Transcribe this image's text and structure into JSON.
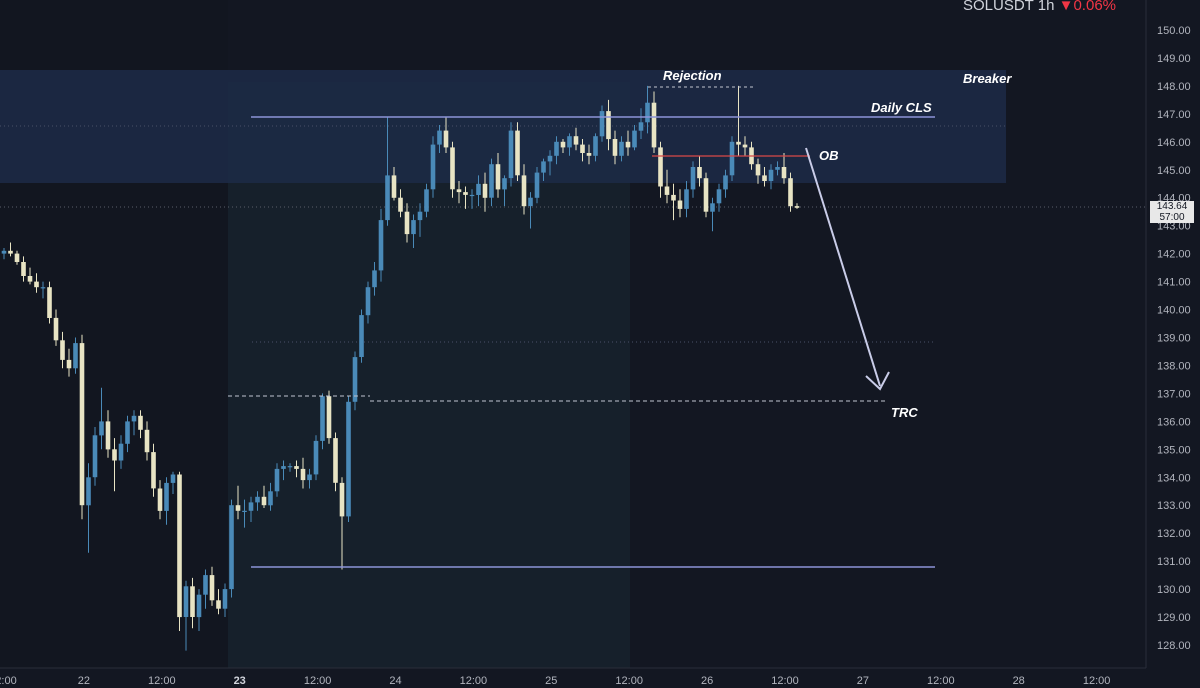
{
  "header": {
    "symbol": "SOLUSDT",
    "interval": "1h",
    "change_arrow": "▼",
    "change": "0.06%"
  },
  "price_tag": {
    "price": "143.64",
    "countdown": "57:00"
  },
  "colors": {
    "background": "#131722",
    "candle": "#e8e4c4",
    "candle_alt": "#4a8ab8",
    "zone": "#1c2a45",
    "level_line": "#8c94d8",
    "ob_line": "#d94848",
    "arrow": "#c9cce8"
  },
  "chart_data": {
    "type": "candlestick",
    "symbol": "SOLUSDT",
    "timeframe": "1h",
    "y_axis": {
      "range": [
        127.5,
        150.3
      ],
      "ticks": [
        "150.00",
        "149.00",
        "148.00",
        "147.00",
        "146.00",
        "145.00",
        "144.00",
        "143.00",
        "142.00",
        "141.00",
        "140.00",
        "139.00",
        "138.00",
        "137.00",
        "136.00",
        "135.00",
        "134.00",
        "133.00",
        "132.00",
        "131.00",
        "130.00",
        "129.00",
        "128.00"
      ]
    },
    "x_axis": {
      "ticks": [
        "2:00",
        "22",
        "12:00",
        "23",
        "12:00",
        "24",
        "12:00",
        "25",
        "12:00",
        "26",
        "12:00",
        "27",
        "12:00",
        "28",
        "12:00"
      ],
      "bold": [
        "23"
      ]
    },
    "annotations": [
      {
        "label": "Breaker",
        "kind": "zone",
        "from": 144.6,
        "to": 148.6
      },
      {
        "label": "Daily CLS",
        "kind": "level",
        "value": 146.9
      },
      {
        "label": "Rejection",
        "kind": "level",
        "value": 148.0
      },
      {
        "label": "OB",
        "kind": "level",
        "value": 145.6
      },
      {
        "label": "TRC",
        "kind": "level",
        "value": 136.7
      },
      {
        "label": "",
        "kind": "level",
        "value": 130.8
      },
      {
        "label": "",
        "kind": "arrow",
        "from": 145.5,
        "to": 137.8
      }
    ],
    "candles": [
      [
        142.0,
        142.2,
        141.8,
        142.1
      ],
      [
        142.1,
        142.4,
        141.9,
        142.0
      ],
      [
        142.0,
        142.1,
        141.6,
        141.7
      ],
      [
        141.7,
        141.9,
        141.0,
        141.2
      ],
      [
        141.2,
        141.5,
        140.9,
        141.0
      ],
      [
        141.0,
        141.3,
        140.6,
        140.8
      ],
      [
        140.8,
        141.0,
        140.4,
        140.8
      ],
      [
        140.8,
        141.0,
        139.5,
        139.7
      ],
      [
        139.7,
        140.0,
        138.7,
        138.9
      ],
      [
        138.9,
        139.2,
        137.9,
        138.2
      ],
      [
        138.2,
        138.6,
        137.6,
        137.9
      ],
      [
        137.9,
        139.0,
        137.7,
        138.8
      ],
      [
        138.8,
        139.1,
        132.5,
        133.0
      ],
      [
        133.0,
        134.5,
        131.3,
        134.0
      ],
      [
        134.0,
        135.8,
        133.7,
        135.5
      ],
      [
        135.5,
        137.2,
        135.0,
        136.0
      ],
      [
        136.0,
        136.4,
        134.7,
        135.0
      ],
      [
        135.0,
        135.4,
        133.5,
        134.6
      ],
      [
        134.6,
        135.5,
        134.3,
        135.2
      ],
      [
        135.2,
        136.2,
        134.9,
        136.0
      ],
      [
        136.0,
        136.4,
        135.5,
        136.2
      ],
      [
        136.2,
        136.4,
        135.4,
        135.7
      ],
      [
        135.7,
        136.0,
        134.6,
        134.9
      ],
      [
        134.9,
        135.2,
        133.3,
        133.6
      ],
      [
        133.6,
        133.9,
        132.5,
        132.8
      ],
      [
        132.8,
        134.0,
        132.3,
        133.8
      ],
      [
        133.8,
        134.2,
        133.4,
        134.1
      ],
      [
        134.1,
        134.2,
        128.5,
        129.0
      ],
      [
        129.0,
        130.3,
        127.8,
        130.1
      ],
      [
        130.1,
        130.4,
        128.6,
        129.0
      ],
      [
        129.0,
        130.0,
        128.5,
        129.8
      ],
      [
        129.8,
        130.7,
        129.3,
        130.5
      ],
      [
        130.5,
        130.8,
        129.4,
        129.6
      ],
      [
        129.6,
        130.0,
        129.1,
        129.3
      ],
      [
        129.3,
        130.2,
        129.0,
        130.0
      ],
      [
        130.0,
        133.2,
        129.7,
        133.0
      ],
      [
        133.0,
        133.7,
        132.5,
        132.8
      ],
      [
        132.8,
        133.2,
        132.2,
        132.8
      ],
      [
        132.8,
        133.3,
        132.4,
        133.1
      ],
      [
        133.1,
        133.5,
        132.8,
        133.3
      ],
      [
        133.3,
        133.7,
        132.9,
        133.0
      ],
      [
        133.0,
        133.8,
        132.8,
        133.5
      ],
      [
        133.5,
        134.5,
        133.3,
        134.3
      ],
      [
        134.3,
        134.6,
        133.9,
        134.4
      ],
      [
        134.4,
        134.5,
        134.2,
        134.4
      ],
      [
        134.4,
        134.6,
        134.0,
        134.3
      ],
      [
        134.3,
        134.7,
        133.6,
        133.9
      ],
      [
        133.9,
        134.3,
        133.6,
        134.1
      ],
      [
        134.1,
        135.5,
        133.9,
        135.3
      ],
      [
        135.3,
        137.0,
        135.0,
        136.9
      ],
      [
        136.9,
        137.1,
        135.2,
        135.4
      ],
      [
        135.4,
        135.6,
        133.5,
        133.8
      ],
      [
        133.8,
        134.0,
        130.7,
        132.6
      ],
      [
        132.6,
        136.9,
        132.4,
        136.7
      ],
      [
        136.7,
        138.5,
        136.4,
        138.3
      ],
      [
        138.3,
        140.0,
        138.1,
        139.8
      ],
      [
        139.8,
        141.0,
        139.5,
        140.8
      ],
      [
        140.8,
        141.7,
        140.5,
        141.4
      ],
      [
        141.4,
        143.6,
        141.0,
        143.2
      ],
      [
        143.2,
        146.9,
        143.0,
        144.8
      ],
      [
        144.8,
        145.1,
        143.9,
        144.0
      ],
      [
        144.0,
        144.3,
        143.3,
        143.5
      ],
      [
        143.5,
        143.8,
        142.4,
        142.7
      ],
      [
        142.7,
        143.4,
        142.2,
        143.2
      ],
      [
        143.2,
        143.8,
        142.6,
        143.5
      ],
      [
        143.5,
        144.5,
        143.3,
        144.3
      ],
      [
        144.3,
        146.2,
        144.0,
        145.9
      ],
      [
        145.9,
        146.6,
        145.6,
        146.4
      ],
      [
        146.4,
        146.9,
        145.6,
        145.8
      ],
      [
        145.8,
        146.0,
        144.0,
        144.3
      ],
      [
        144.3,
        144.6,
        143.8,
        144.2
      ],
      [
        144.2,
        144.4,
        143.6,
        144.1
      ],
      [
        144.1,
        144.3,
        143.6,
        144.1
      ],
      [
        144.1,
        144.8,
        143.7,
        144.5
      ],
      [
        144.5,
        144.9,
        143.5,
        144.0
      ],
      [
        144.0,
        145.4,
        143.7,
        145.2
      ],
      [
        145.2,
        145.6,
        144.0,
        144.3
      ],
      [
        144.3,
        144.8,
        143.7,
        144.7
      ],
      [
        144.7,
        146.7,
        144.4,
        146.4
      ],
      [
        146.4,
        146.7,
        144.6,
        144.8
      ],
      [
        144.8,
        145.2,
        143.4,
        143.7
      ],
      [
        143.7,
        144.2,
        142.9,
        144.0
      ],
      [
        144.0,
        145.1,
        143.8,
        144.9
      ],
      [
        144.9,
        145.4,
        144.6,
        145.3
      ],
      [
        145.3,
        145.7,
        144.8,
        145.5
      ],
      [
        145.5,
        146.2,
        145.2,
        146.0
      ],
      [
        146.0,
        146.1,
        145.6,
        145.8
      ],
      [
        145.8,
        146.3,
        145.5,
        146.2
      ],
      [
        146.2,
        146.5,
        145.7,
        145.9
      ],
      [
        145.9,
        146.1,
        145.3,
        145.6
      ],
      [
        145.6,
        145.9,
        145.2,
        145.5
      ],
      [
        145.5,
        146.3,
        145.3,
        146.2
      ],
      [
        146.2,
        147.3,
        146.0,
        147.1
      ],
      [
        147.1,
        147.5,
        145.7,
        146.1
      ],
      [
        146.1,
        146.4,
        145.2,
        145.5
      ],
      [
        145.5,
        146.2,
        145.3,
        146.0
      ],
      [
        146.0,
        146.4,
        145.5,
        145.8
      ],
      [
        145.8,
        146.6,
        145.7,
        146.4
      ],
      [
        146.4,
        147.2,
        146.1,
        146.7
      ],
      [
        146.7,
        148.0,
        146.3,
        147.4
      ],
      [
        147.4,
        147.8,
        145.6,
        145.8
      ],
      [
        145.8,
        146.0,
        144.0,
        144.4
      ],
      [
        144.4,
        145.0,
        143.8,
        144.1
      ],
      [
        144.1,
        144.5,
        143.2,
        143.9
      ],
      [
        143.9,
        144.3,
        143.3,
        143.6
      ],
      [
        143.6,
        144.6,
        143.3,
        144.3
      ],
      [
        144.3,
        145.3,
        144.0,
        145.1
      ],
      [
        145.1,
        145.5,
        144.4,
        144.7
      ],
      [
        144.7,
        144.9,
        143.3,
        143.5
      ],
      [
        143.5,
        144.0,
        142.8,
        143.8
      ],
      [
        143.8,
        144.5,
        143.5,
        144.3
      ],
      [
        144.3,
        145.0,
        144.0,
        144.8
      ],
      [
        144.8,
        146.2,
        144.6,
        146.0
      ],
      [
        146.0,
        148.0,
        145.5,
        145.9
      ],
      [
        145.9,
        146.2,
        145.5,
        145.8
      ],
      [
        145.8,
        146.0,
        145.0,
        145.2
      ],
      [
        145.2,
        145.4,
        144.5,
        144.8
      ],
      [
        144.8,
        145.1,
        144.4,
        144.6
      ],
      [
        144.6,
        145.2,
        144.3,
        145.0
      ],
      [
        145.0,
        145.3,
        144.8,
        145.1
      ],
      [
        145.1,
        145.6,
        144.5,
        144.7
      ],
      [
        144.7,
        144.9,
        143.5,
        143.7
      ],
      [
        143.7,
        143.8,
        143.6,
        143.64
      ]
    ]
  }
}
